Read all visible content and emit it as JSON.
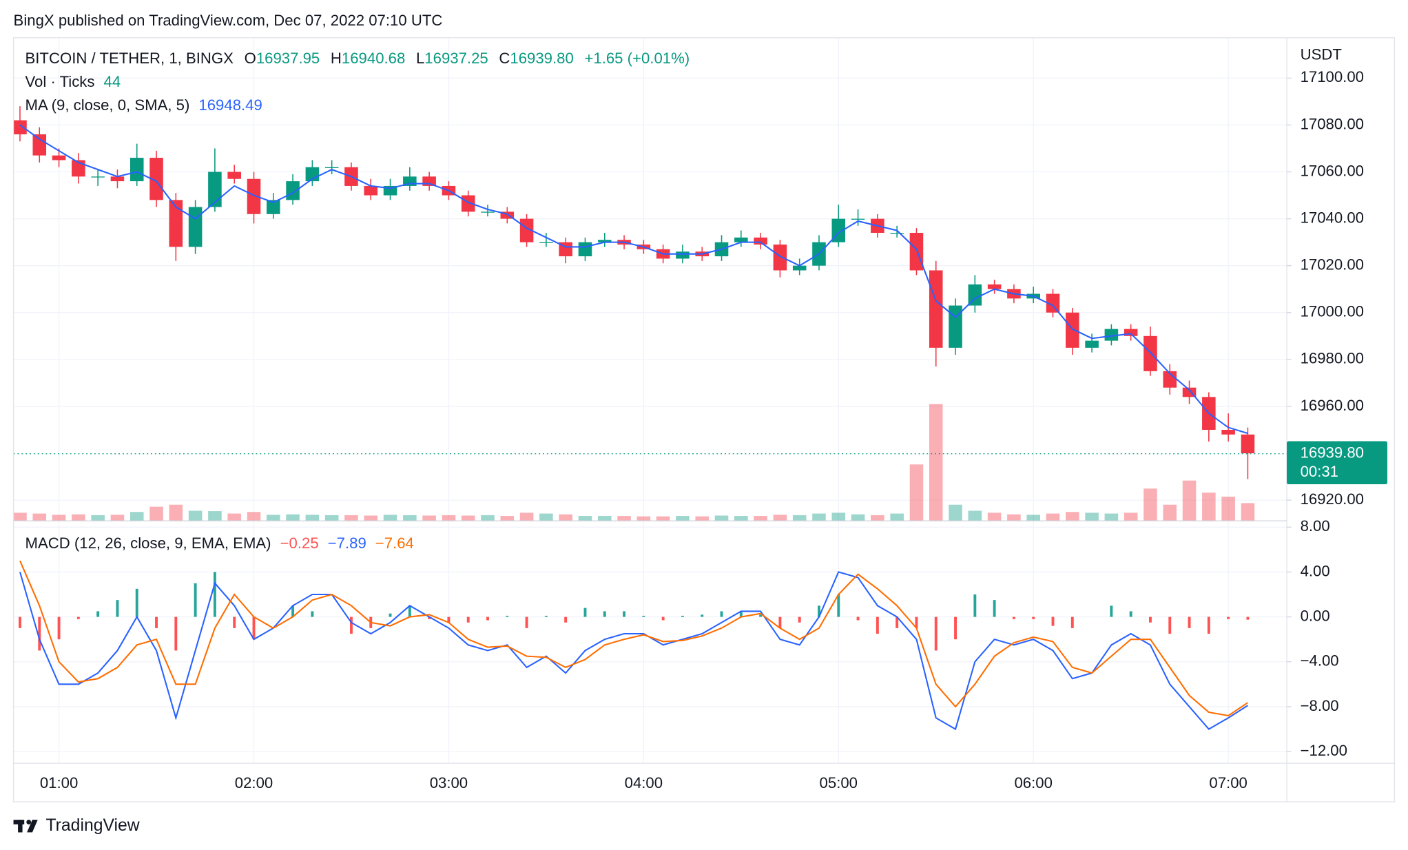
{
  "header": {
    "publisher": "BingX published on TradingView.com, Dec 07, 2022 07:10 UTC"
  },
  "footer": {
    "brand": "TradingView"
  },
  "chart_data": [
    {
      "type": "candlestick",
      "title": "BITCOIN / TETHER, 1, BINGX",
      "ohlc_legend": [
        {
          "label": "O",
          "value": 16937.95
        },
        {
          "label": "H",
          "value": 16940.68
        },
        {
          "label": "L",
          "value": 16937.25
        },
        {
          "label": "C",
          "value": 16939.8,
          "value_label": "16939.80"
        }
      ],
      "change": "+1.65 (+0.01%)",
      "axis_unit": "USDT",
      "up_color": "#089981",
      "down_color": "#f23645",
      "x": [
        "00:48",
        "00:54",
        "01:00",
        "01:06",
        "01:12",
        "01:18",
        "01:24",
        "01:30",
        "01:36",
        "01:42",
        "01:48",
        "01:54",
        "02:00",
        "02:06",
        "02:12",
        "02:18",
        "02:24",
        "02:30",
        "02:36",
        "02:42",
        "02:48",
        "02:54",
        "03:00",
        "03:06",
        "03:12",
        "03:18",
        "03:24",
        "03:30",
        "03:36",
        "03:42",
        "03:48",
        "03:54",
        "04:00",
        "04:06",
        "04:12",
        "04:18",
        "04:24",
        "04:30",
        "04:36",
        "04:42",
        "04:48",
        "04:54",
        "05:00",
        "05:06",
        "05:12",
        "05:18",
        "05:24",
        "05:30",
        "05:36",
        "05:42",
        "05:48",
        "05:54",
        "06:00",
        "06:06",
        "06:12",
        "06:18",
        "06:24",
        "06:30",
        "06:36",
        "06:42",
        "06:48",
        "06:54",
        "07:00",
        "07:06"
      ],
      "open": [
        17082,
        17076,
        17067,
        17065,
        17058,
        17058,
        17056,
        17066,
        17048,
        17028,
        17045,
        17060,
        17057,
        17042,
        17048,
        17056,
        17062,
        17062,
        17054,
        17050,
        17054,
        17058,
        17054,
        17050,
        17043,
        17043,
        17040,
        17030,
        17030,
        17024,
        17030,
        17031,
        17029,
        17027,
        17023,
        17026,
        17024,
        17030,
        17032,
        17029,
        17018,
        17020,
        17030,
        17040,
        17040,
        17034,
        17034,
        17018,
        16985,
        17003,
        17012,
        17010,
        17006,
        17008,
        17000,
        16985,
        16988,
        16993,
        16990,
        16975,
        16968,
        16964,
        16950,
        16948
      ],
      "high": [
        17088,
        17079,
        17070,
        17068,
        17061,
        17061,
        17072,
        17069,
        17051,
        17048,
        17070,
        17063,
        17060,
        17051,
        17059,
        17065,
        17065,
        17064,
        17057,
        17057,
        17062,
        17060,
        17056,
        17052,
        17046,
        17045,
        17042,
        17034,
        17032,
        17032,
        17034,
        17033,
        17031,
        17029,
        17029,
        17028,
        17033,
        17035,
        17034,
        17031,
        17023,
        17033,
        17046,
        17044,
        17042,
        17037,
        17036,
        17022,
        17006,
        17016,
        17014,
        17012,
        17011,
        17010,
        17002,
        16991,
        16995,
        16995,
        16994,
        16978,
        16971,
        16966,
        16957,
        16951
      ],
      "low": [
        17073,
        17064,
        17062,
        17055,
        17054,
        17053,
        17054,
        17045,
        17022,
        17025,
        17043,
        17055,
        17038,
        17040,
        17046,
        17054,
        17059,
        17052,
        17048,
        17048,
        17052,
        17052,
        17048,
        17041,
        17041,
        17038,
        17028,
        17028,
        17021,
        17022,
        17028,
        17027,
        17025,
        17021,
        17021,
        17022,
        17022,
        17028,
        17027,
        17015,
        17016,
        17018,
        17028,
        17037,
        17032,
        17032,
        17016,
        16977,
        16982,
        17000,
        17008,
        17004,
        17004,
        16998,
        16982,
        16983,
        16986,
        16988,
        16973,
        16965,
        16961,
        16945,
        16945,
        16929
      ],
      "close": [
        17076,
        17067,
        17065,
        17058,
        17058,
        17056,
        17066,
        17048,
        17028,
        17045,
        17060,
        17057,
        17042,
        17048,
        17056,
        17062,
        17062,
        17054,
        17050,
        17054,
        17058,
        17054,
        17050,
        17043,
        17043,
        17040,
        17030,
        17030,
        17024,
        17030,
        17031,
        17029,
        17027,
        17023,
        17026,
        17024,
        17030,
        17032,
        17029,
        17018,
        17020,
        17030,
        17040,
        17040,
        17034,
        17034,
        17018,
        16985,
        17003,
        17012,
        17010,
        17006,
        17008,
        17000,
        16985,
        16988,
        16993,
        16990,
        16975,
        16968,
        16964,
        16950,
        16948,
        16940
      ],
      "series": [
        {
          "name": "MA (9, close, 0, SMA, 5)",
          "color": "#2962ff",
          "values": [
            17080,
            17074,
            17069,
            17064,
            17061,
            17058,
            17060,
            17056,
            17045,
            17040,
            17047,
            17054,
            17050,
            17047,
            17051,
            17057,
            17061,
            17058,
            17054,
            17053,
            17055,
            17055,
            17052,
            17047,
            17044,
            17042,
            17036,
            17032,
            17028,
            17028,
            17030,
            17030,
            17028,
            17025,
            17025,
            17025,
            17027,
            17030,
            17030,
            17024,
            17020,
            17025,
            17034,
            17039,
            17037,
            17035,
            17027,
            17005,
            16998,
            17006,
            17010,
            17008,
            17007,
            17003,
            16993,
            16989,
            16990,
            16991,
            16983,
            16974,
            16967,
            16957,
            16951,
            16948.49
          ]
        }
      ],
      "volume": {
        "name": "Vol · Ticks",
        "ylim": [
          0,
          1200
        ],
        "values": [
          20,
          18,
          15,
          16,
          14,
          15,
          22,
          35,
          40,
          25,
          24,
          18,
          22,
          15,
          16,
          15,
          14,
          14,
          13,
          15,
          14,
          13,
          14,
          13,
          14,
          12,
          20,
          18,
          16,
          12,
          12,
          12,
          11,
          11,
          12,
          11,
          13,
          12,
          12,
          15,
          14,
          18,
          20,
          16,
          14,
          18,
          140,
          290,
          40,
          25,
          20,
          16,
          15,
          18,
          22,
          20,
          18,
          20,
          80,
          40,
          100,
          70,
          60,
          44
        ]
      },
      "last_price": {
        "value": 16939.8,
        "label": "16939.80"
      },
      "countdown": "00:31",
      "xlim": [
        "00:46",
        "07:18"
      ],
      "xticks": [
        "01:00",
        "02:00",
        "03:00",
        "04:00",
        "05:00",
        "06:00",
        "07:00"
      ],
      "ylim": [
        16911.2,
        17117.2
      ],
      "yticks": [
        {
          "value": 16920,
          "label": "16920.00"
        },
        {
          "value": 16960,
          "label": "16960.00"
        },
        {
          "value": 16980,
          "label": "16980.00"
        },
        {
          "value": 17000,
          "label": "17000.00"
        },
        {
          "value": 17020,
          "label": "17020.00"
        },
        {
          "value": 17040,
          "label": "17040.00"
        },
        {
          "value": 17060,
          "label": "17060.00"
        },
        {
          "value": 17080,
          "label": "17080.00"
        },
        {
          "value": 17100,
          "label": "17100.00"
        }
      ],
      "grid": true
    },
    {
      "type": "macd",
      "name": "MACD (12, 26, close, 9, EMA, EMA)",
      "legend_labels": [
        "−0.25",
        "−7.89",
        "−7.64"
      ],
      "histogram": {
        "up_color": "#26a69a",
        "down_color": "#ff5252",
        "values": [
          -1,
          -3,
          -2,
          -0.2,
          0.5,
          1.5,
          2.5,
          -1,
          -3,
          3,
          4,
          -1,
          -2,
          0,
          1,
          0.5,
          0,
          -1.5,
          -1,
          0.3,
          1,
          -0.2,
          -0.5,
          -0.5,
          -0.3,
          0.1,
          -1,
          0.1,
          -0.5,
          0.8,
          0.5,
          0.5,
          0.1,
          -0.3,
          0.1,
          0.2,
          0.5,
          0.5,
          0.2,
          -1,
          -0.5,
          1,
          2,
          -0.3,
          -1.5,
          -1,
          -1,
          -3,
          -2,
          2,
          1.5,
          -0.2,
          -0.2,
          -0.8,
          -1,
          0,
          1,
          0.5,
          -0.5,
          -1.5,
          -1,
          -1.5,
          -0.2,
          -0.25
        ]
      },
      "macd": {
        "color": "#2962ff",
        "values": [
          4,
          -2,
          -6,
          -6,
          -5,
          -3,
          0,
          -3,
          -9,
          -3,
          3,
          1,
          -2,
          -1,
          1,
          2,
          2,
          -0.5,
          -1.5,
          -0.5,
          1,
          0,
          -1,
          -2.5,
          -3,
          -2.5,
          -4.5,
          -3.5,
          -5,
          -3,
          -2,
          -1.5,
          -1.5,
          -2.5,
          -2,
          -1.5,
          -0.5,
          0.5,
          0.5,
          -2,
          -2.5,
          0,
          4,
          3.5,
          1,
          0,
          -2,
          -9,
          -10,
          -4,
          -2,
          -2.5,
          -2,
          -3,
          -5.5,
          -5,
          -2.5,
          -1.5,
          -2.5,
          -6,
          -8,
          -10,
          -9,
          -7.89
        ]
      },
      "signal": {
        "color": "#ff6d00",
        "values": [
          5,
          1,
          -4,
          -5.8,
          -5.5,
          -4.5,
          -2.5,
          -2,
          -6,
          -6,
          -1,
          2,
          0,
          -1,
          0,
          1.5,
          2,
          1,
          -0.5,
          -0.8,
          0,
          0.2,
          -0.5,
          -2,
          -2.7,
          -2.6,
          -3.5,
          -3.6,
          -4.5,
          -3.8,
          -2.5,
          -2,
          -1.6,
          -2.2,
          -2.1,
          -1.7,
          -1,
          0,
          0.3,
          -1,
          -2,
          -1,
          2,
          3.8,
          2.5,
          1,
          -1,
          -6,
          -8,
          -6,
          -3.5,
          -2.3,
          -1.8,
          -2.2,
          -4.5,
          -5,
          -3.5,
          -2,
          -2,
          -4.5,
          -7,
          -8.5,
          -8.8,
          -7.64
        ]
      },
      "ylim": [
        -13.04,
        8.56
      ],
      "yticks": [
        {
          "value": 8,
          "label": "8.00"
        },
        {
          "value": 4,
          "label": "4.00"
        },
        {
          "value": 0,
          "label": "0.00"
        },
        {
          "value": -4,
          "label": "−4.00"
        },
        {
          "value": -8,
          "label": "−8.00"
        },
        {
          "value": -12,
          "label": "−12.00"
        }
      ],
      "grid": true
    }
  ]
}
